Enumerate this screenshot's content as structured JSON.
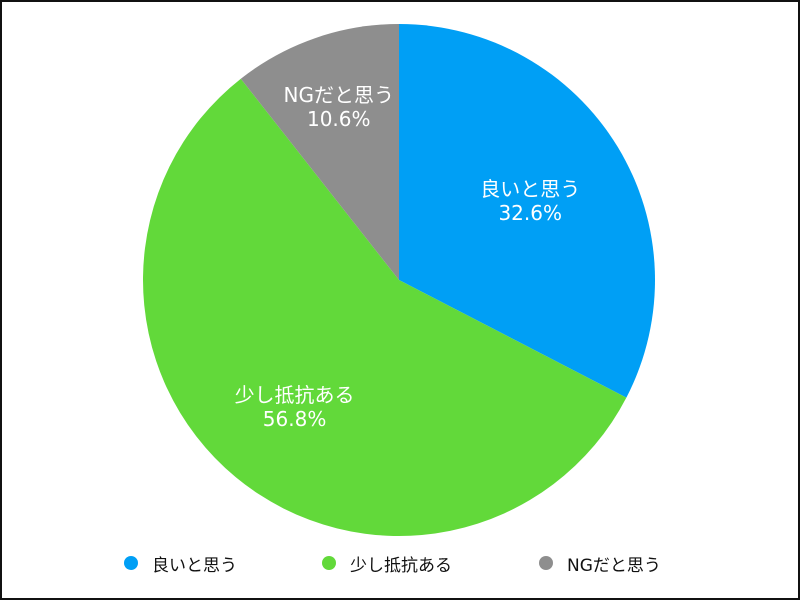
{
  "chart_data": {
    "type": "pie",
    "title": "",
    "slices": [
      {
        "label": "良いと思う",
        "value": 32.6,
        "value_label": "32.6%",
        "color": "#009ff5"
      },
      {
        "label": "少し抵抗ある",
        "value": 56.8,
        "value_label": "56.8%",
        "color": "#62d93a"
      },
      {
        "label": "NGだと思う",
        "value": 10.6,
        "value_label": "10.6%",
        "color": "#8e8e8e"
      }
    ],
    "start_angle": "12 o'clock",
    "direction": "clockwise",
    "legend": "bottom"
  }
}
